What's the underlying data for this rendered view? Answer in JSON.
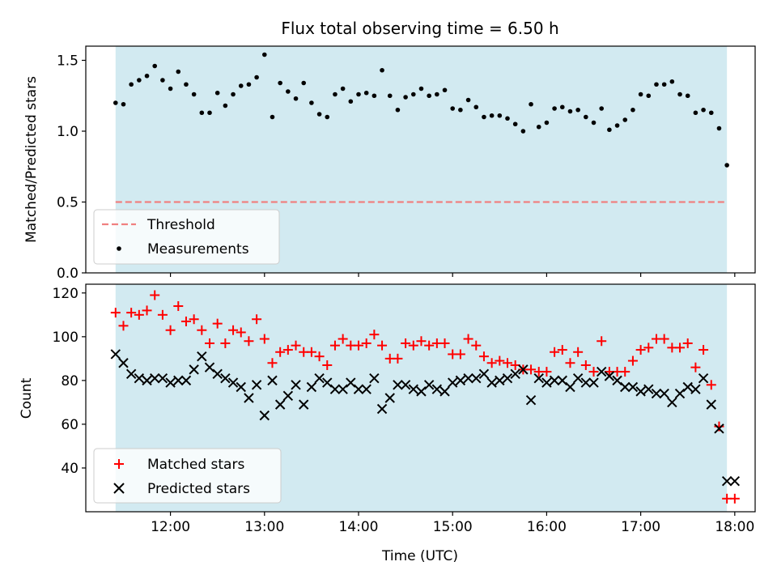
{
  "chart_data": [
    {
      "type": "scatter",
      "title": "Flux total observing time = 6.50 h",
      "ylabel": "Matched/Predicted stars",
      "xlim": [
        "11:06",
        "18:13"
      ],
      "ylim": [
        0,
        1.6
      ],
      "yticks": [
        "0.0",
        "0.5",
        "1.0",
        "1.5"
      ],
      "xticks": [
        "12:00",
        "13:00",
        "14:00",
        "15:00",
        "16:00",
        "17:00",
        "18:00"
      ],
      "observing_window": [
        "11:25",
        "17:55"
      ],
      "shading_color": "#add8e6",
      "threshold": 0.5,
      "threshold_color": "#f08080",
      "legend_position": "lower-left",
      "legend": [
        "Threshold",
        "Measurements"
      ],
      "series": [
        {
          "name": "Measurements",
          "color": "#000000",
          "x": [
            "11:25",
            "11:30",
            "11:35",
            "11:40",
            "11:45",
            "11:50",
            "11:55",
            "12:00",
            "12:05",
            "12:10",
            "12:15",
            "12:20",
            "12:25",
            "12:30",
            "12:35",
            "12:40",
            "12:45",
            "12:50",
            "12:55",
            "13:00",
            "13:05",
            "13:10",
            "13:15",
            "13:20",
            "13:25",
            "13:30",
            "13:35",
            "13:40",
            "13:45",
            "13:50",
            "13:55",
            "14:00",
            "14:05",
            "14:10",
            "14:15",
            "14:20",
            "14:25",
            "14:30",
            "14:35",
            "14:40",
            "14:45",
            "14:50",
            "14:55",
            "15:00",
            "15:05",
            "15:10",
            "15:15",
            "15:20",
            "15:25",
            "15:30",
            "15:35",
            "15:40",
            "15:45",
            "15:50",
            "15:55",
            "16:00",
            "16:05",
            "16:10",
            "16:15",
            "16:20",
            "16:25",
            "16:30",
            "16:35",
            "16:40",
            "16:45",
            "16:50",
            "16:55",
            "17:00",
            "17:05",
            "17:10",
            "17:15",
            "17:20",
            "17:25",
            "17:30",
            "17:35",
            "17:40",
            "17:45",
            "17:50",
            "17:55"
          ],
          "y": [
            1.2,
            1.19,
            1.33,
            1.36,
            1.39,
            1.46,
            1.36,
            1.3,
            1.42,
            1.33,
            1.26,
            1.13,
            1.13,
            1.27,
            1.18,
            1.26,
            1.32,
            1.33,
            1.38,
            1.54,
            1.1,
            1.34,
            1.28,
            1.23,
            1.34,
            1.2,
            1.12,
            1.1,
            1.26,
            1.3,
            1.21,
            1.26,
            1.27,
            1.25,
            1.43,
            1.25,
            1.15,
            1.24,
            1.26,
            1.3,
            1.25,
            1.26,
            1.29,
            1.16,
            1.15,
            1.22,
            1.17,
            1.1,
            1.11,
            1.11,
            1.09,
            1.05,
            1.0,
            1.19,
            1.03,
            1.06,
            1.16,
            1.17,
            1.14,
            1.15,
            1.1,
            1.06,
            1.16,
            1.01,
            1.04,
            1.08,
            1.15,
            1.26,
            1.25,
            1.33,
            1.33,
            1.35,
            1.26,
            1.25,
            1.13,
            1.15,
            1.13,
            1.02,
            0.76
          ]
        }
      ]
    },
    {
      "type": "scatter",
      "xlabel": "Time (UTC)",
      "ylabel": "Count",
      "xlim": [
        "11:06",
        "18:13"
      ],
      "ylim": [
        20,
        124
      ],
      "yticks": [
        "40",
        "60",
        "80",
        "100",
        "120"
      ],
      "xticks": [
        "12:00",
        "13:00",
        "14:00",
        "15:00",
        "16:00",
        "17:00",
        "18:00"
      ],
      "observing_window": [
        "11:25",
        "17:55"
      ],
      "legend_position": "lower-left",
      "legend": [
        "Matched stars",
        "Predicted stars"
      ],
      "series": [
        {
          "name": "Matched stars",
          "marker": "plus",
          "color": "#ff0000",
          "x": [
            "11:25",
            "11:30",
            "11:35",
            "11:40",
            "11:45",
            "11:50",
            "11:55",
            "12:00",
            "12:05",
            "12:10",
            "12:15",
            "12:20",
            "12:25",
            "12:30",
            "12:35",
            "12:40",
            "12:45",
            "12:50",
            "12:55",
            "13:00",
            "13:05",
            "13:10",
            "13:15",
            "13:20",
            "13:25",
            "13:30",
            "13:35",
            "13:40",
            "13:45",
            "13:50",
            "13:55",
            "14:00",
            "14:05",
            "14:10",
            "14:15",
            "14:20",
            "14:25",
            "14:30",
            "14:35",
            "14:40",
            "14:45",
            "14:50",
            "14:55",
            "15:00",
            "15:05",
            "15:10",
            "15:15",
            "15:20",
            "15:25",
            "15:30",
            "15:35",
            "15:40",
            "15:45",
            "15:50",
            "15:55",
            "16:00",
            "16:05",
            "16:10",
            "16:15",
            "16:20",
            "16:25",
            "16:30",
            "16:35",
            "16:40",
            "16:45",
            "16:50",
            "16:55",
            "17:00",
            "17:05",
            "17:10",
            "17:15",
            "17:20",
            "17:25",
            "17:30",
            "17:35",
            "17:40",
            "17:45",
            "17:50",
            "17:55",
            "18:00"
          ],
          "y": [
            111,
            105,
            111,
            110,
            112,
            119,
            110,
            103,
            114,
            107,
            108,
            103,
            97,
            106,
            97,
            103,
            102,
            98,
            108,
            99,
            88,
            93,
            94,
            96,
            93,
            93,
            91,
            87,
            96,
            99,
            96,
            96,
            97,
            101,
            96,
            90,
            90,
            97,
            96,
            98,
            96,
            97,
            97,
            92,
            92,
            99,
            96,
            91,
            88,
            89,
            88,
            87,
            85,
            85,
            84,
            84,
            93,
            94,
            88,
            93,
            87,
            84,
            98,
            84,
            84,
            84,
            89,
            94,
            95,
            99,
            99,
            95,
            95,
            97,
            86,
            94,
            78,
            59,
            26,
            26
          ]
        },
        {
          "name": "Predicted stars",
          "marker": "x",
          "color": "#000000",
          "x": [
            "11:25",
            "11:30",
            "11:35",
            "11:40",
            "11:45",
            "11:50",
            "11:55",
            "12:00",
            "12:05",
            "12:10",
            "12:15",
            "12:20",
            "12:25",
            "12:30",
            "12:35",
            "12:40",
            "12:45",
            "12:50",
            "12:55",
            "13:00",
            "13:05",
            "13:10",
            "13:15",
            "13:20",
            "13:25",
            "13:30",
            "13:35",
            "13:40",
            "13:45",
            "13:50",
            "13:55",
            "14:00",
            "14:05",
            "14:10",
            "14:15",
            "14:20",
            "14:25",
            "14:30",
            "14:35",
            "14:40",
            "14:45",
            "14:50",
            "14:55",
            "15:00",
            "15:05",
            "15:10",
            "15:15",
            "15:20",
            "15:25",
            "15:30",
            "15:35",
            "15:40",
            "15:45",
            "15:50",
            "15:55",
            "16:00",
            "16:05",
            "16:10",
            "16:15",
            "16:20",
            "16:25",
            "16:30",
            "16:35",
            "16:40",
            "16:45",
            "16:50",
            "16:55",
            "17:00",
            "17:05",
            "17:10",
            "17:15",
            "17:20",
            "17:25",
            "17:30",
            "17:35",
            "17:40",
            "17:45",
            "17:50",
            "17:55",
            "18:00"
          ],
          "y": [
            92,
            88,
            83,
            81,
            80,
            81,
            81,
            79,
            80,
            80,
            85,
            91,
            86,
            83,
            81,
            79,
            77,
            72,
            78,
            64,
            80,
            69,
            73,
            78,
            69,
            77,
            81,
            79,
            76,
            76,
            79,
            76,
            76,
            81,
            67,
            72,
            78,
            78,
            76,
            75,
            78,
            76,
            75,
            79,
            80,
            81,
            81,
            83,
            79,
            80,
            81,
            83,
            85,
            71,
            81,
            79,
            80,
            80,
            77,
            81,
            79,
            79,
            84,
            82,
            80,
            77,
            77,
            75,
            76,
            74,
            74,
            70,
            74,
            77,
            76,
            81,
            69,
            58,
            34,
            34
          ]
        }
      ]
    }
  ]
}
